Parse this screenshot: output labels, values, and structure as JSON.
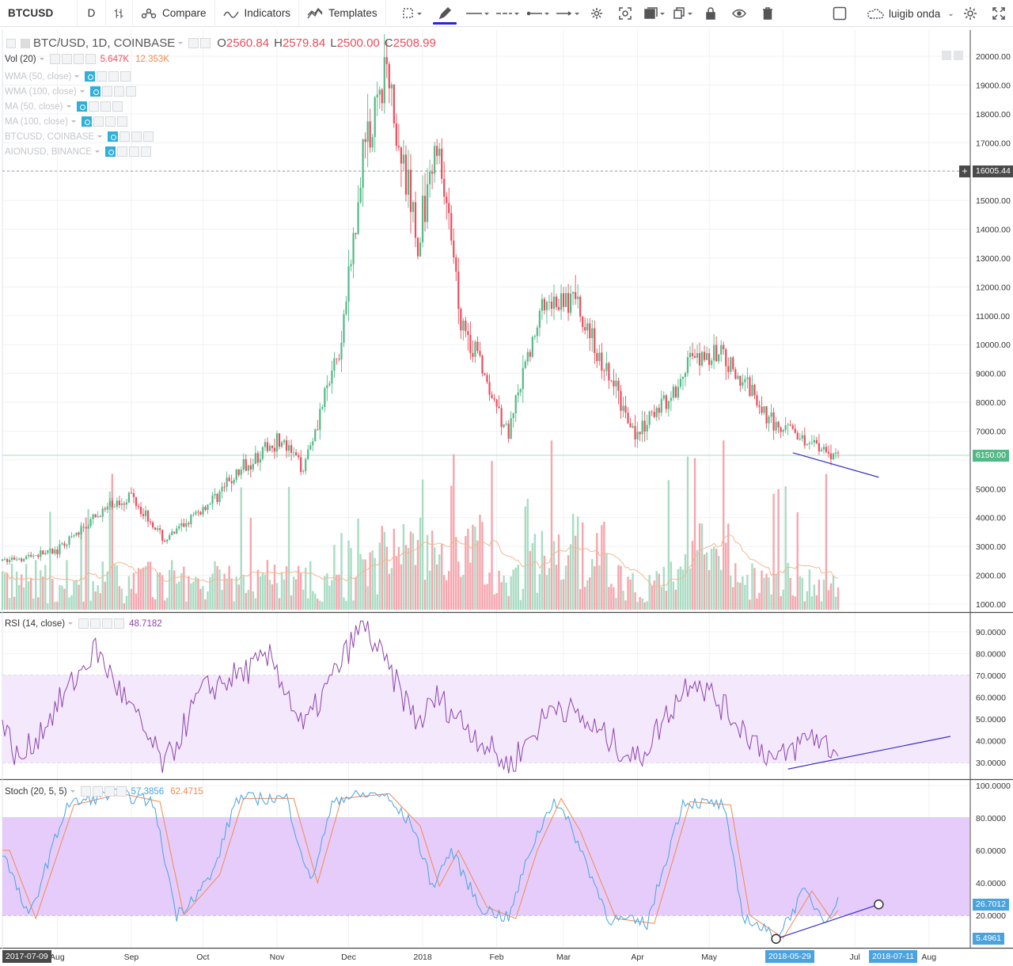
{
  "toolbar": {
    "symbol": "BTCUSD",
    "interval": "D",
    "compare_label": "Compare",
    "indicators_label": "Indicators",
    "templates_label": "Templates",
    "username": "luigib onda",
    "icons": [
      "bar-style-icon",
      "compare-icon",
      "indicators-icon",
      "templates-icon",
      "selection-tool-icon",
      "pencil-icon",
      "line-style-icon",
      "line-dash-icon",
      "line-dotted-icon",
      "arrow-line-icon",
      "settings-icon",
      "screenshot-icon",
      "layers-icon",
      "copy-icon",
      "lock-icon",
      "eye-icon",
      "trash-icon",
      "checkbox-icon",
      "cloud-icon",
      "gear-icon",
      "fullscreen-icon"
    ]
  },
  "main_legend": {
    "title": "BTC/USD, 1D, COINBASE",
    "open_label": "O",
    "open": "2560.84",
    "high_label": "H",
    "high": "2579.84",
    "low_label": "L",
    "low": "2500.00",
    "close_label": "C",
    "close": "2508.99",
    "vol_label": "Vol (20)",
    "vol_value": "5.647K",
    "vol_ma": "12.353K",
    "studies": [
      "WMA (50, close)",
      "WMA (100, close)",
      "MA (50, close)",
      "MA (100, close)",
      "BTCUSD, COINBASE",
      "AIONUSD, BINANCE"
    ]
  },
  "rsi_legend": {
    "label": "RSI (14, close)",
    "value": "48.7182"
  },
  "stoch_legend": {
    "label": "Stoch (20, 5, 5)",
    "k_value": "57.3856",
    "d_value": "62.4715"
  },
  "price_axis": [
    "20000.00",
    "19000.00",
    "18000.00",
    "17000.00",
    "15000.00",
    "14000.00",
    "13000.00",
    "12000.00",
    "11000.00",
    "10000.00",
    "9000.00",
    "8000.00",
    "7000.00",
    "5000.00",
    "4000.00",
    "3000.00",
    "2000.00",
    "1000.00"
  ],
  "price_tags": {
    "crosshair": "16005.44",
    "last": "6150.00"
  },
  "rsi_axis": [
    "90.0000",
    "80.0000",
    "70.0000",
    "60.0000",
    "50.0000",
    "40.0000",
    "30.0000"
  ],
  "stoch_axis": [
    "100.0000",
    "80.0000",
    "60.0000",
    "40.0000",
    "20.0000"
  ],
  "stoch_tags": {
    "upper": "26.7012",
    "lower": "5.4961"
  },
  "time_axis": {
    "start_tag": "2017-07-09",
    "months": [
      "Aug",
      "Sep",
      "Oct",
      "Nov",
      "Dec",
      "2018",
      "Feb",
      "Mar",
      "Apr",
      "May",
      "Jul",
      "Aug"
    ],
    "tag_mid": "2018-05-29",
    "tag_end": "2018-07-11"
  },
  "colors": {
    "up": "#53b987",
    "down": "#eb4d5c",
    "vol_up": "#a9dcc3",
    "vol_down": "#f5a6ae",
    "rsi_line": "#8e44ad",
    "rsi_band": "#f3e8fc",
    "stoch_band": "#e6ccfb",
    "stoch_k": "#4aa3df",
    "stoch_d": "#f08a52",
    "trendline": "#3b2fc9",
    "last_price": "#53b987",
    "crosshair_tag": "#4a4a4a",
    "axis_tag_blue": "#4aa3df"
  },
  "chart_data": {
    "type": "candlestick",
    "symbol": "BTC/USD",
    "x_range": [
      "2017-07-09",
      "2018-07-11"
    ],
    "ylim": [
      1000,
      20500
    ],
    "monthly_path": [
      {
        "date": "2017-07-09",
        "price": 2500
      },
      {
        "date": "2017-08-01",
        "price": 2850
      },
      {
        "date": "2017-08-20",
        "price": 4200
      },
      {
        "date": "2017-09-01",
        "price": 4800
      },
      {
        "date": "2017-09-15",
        "price": 3200
      },
      {
        "date": "2017-10-01",
        "price": 4300
      },
      {
        "date": "2017-10-20",
        "price": 5900
      },
      {
        "date": "2017-11-01",
        "price": 6700
      },
      {
        "date": "2017-11-12",
        "price": 5800
      },
      {
        "date": "2017-11-28",
        "price": 10000
      },
      {
        "date": "2017-12-07",
        "price": 16500
      },
      {
        "date": "2017-12-17",
        "price": 19500
      },
      {
        "date": "2017-12-30",
        "price": 13500
      },
      {
        "date": "2018-01-07",
        "price": 17000
      },
      {
        "date": "2018-01-17",
        "price": 11000
      },
      {
        "date": "2018-02-06",
        "price": 6900
      },
      {
        "date": "2018-02-20",
        "price": 11400
      },
      {
        "date": "2018-03-05",
        "price": 11500
      },
      {
        "date": "2018-04-01",
        "price": 6800
      },
      {
        "date": "2018-04-24",
        "price": 9400
      },
      {
        "date": "2018-05-06",
        "price": 9700
      },
      {
        "date": "2018-05-29",
        "price": 7200
      },
      {
        "date": "2018-06-12",
        "price": 6700
      },
      {
        "date": "2018-06-24",
        "price": 6150
      }
    ],
    "rsi_path": [
      {
        "date": "2017-07-09",
        "value": 48
      },
      {
        "date": "2017-07-16",
        "value": 30
      },
      {
        "date": "2017-08-17",
        "value": 82
      },
      {
        "date": "2017-09-15",
        "value": 28
      },
      {
        "date": "2017-09-30",
        "value": 62
      },
      {
        "date": "2017-10-30",
        "value": 78
      },
      {
        "date": "2017-11-12",
        "value": 45
      },
      {
        "date": "2017-12-07",
        "value": 94
      },
      {
        "date": "2017-12-30",
        "value": 48
      },
      {
        "date": "2018-01-07",
        "value": 60
      },
      {
        "date": "2018-02-06",
        "value": 28
      },
      {
        "date": "2018-02-26",
        "value": 58
      },
      {
        "date": "2018-04-01",
        "value": 31
      },
      {
        "date": "2018-04-24",
        "value": 70
      },
      {
        "date": "2018-05-29",
        "value": 30
      },
      {
        "date": "2018-06-13",
        "value": 43
      },
      {
        "date": "2018-06-24",
        "value": 34
      }
    ],
    "rsi_band": [
      30,
      70
    ],
    "stoch_band": [
      20,
      80
    ],
    "annotations": [
      {
        "type": "trendline",
        "pane": "price",
        "from": {
          "date": "2018-06-05",
          "value": 6250
        },
        "to": {
          "date": "2018-07-11",
          "value": 5400
        }
      },
      {
        "type": "trendline",
        "pane": "rsi",
        "from": {
          "date": "2018-06-03",
          "value": 27
        },
        "to": {
          "date": "2018-08-10",
          "value": 42
        }
      },
      {
        "type": "trendline",
        "pane": "stoch",
        "from": {
          "date": "2018-05-29",
          "value": 5.4961
        },
        "to": {
          "date": "2018-07-11",
          "value": 26.7012
        }
      }
    ]
  }
}
